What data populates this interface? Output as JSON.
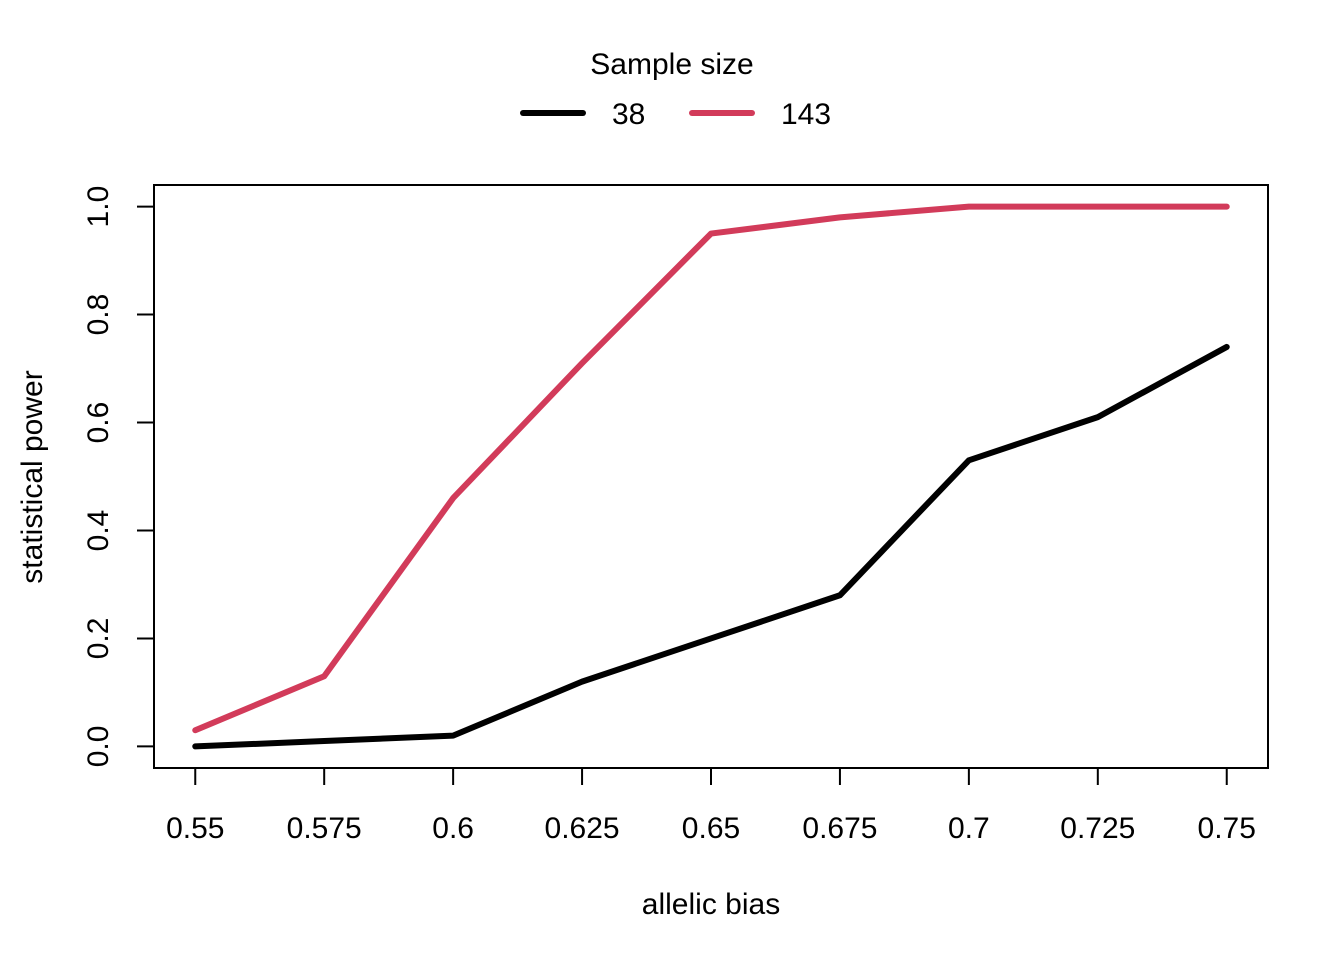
{
  "chart_data": {
    "type": "line",
    "title": "",
    "xlabel": "allelic bias",
    "ylabel": "statistical power",
    "x": [
      0.55,
      0.575,
      0.6,
      0.625,
      0.65,
      0.675,
      0.7,
      0.725,
      0.75
    ],
    "x_tick_labels": [
      "0.55",
      "0.575",
      "0.6",
      "0.625",
      "0.65",
      "0.675",
      "0.7",
      "0.725",
      "0.75"
    ],
    "y_ticks": [
      0.0,
      0.2,
      0.4,
      0.6,
      0.8,
      1.0
    ],
    "y_tick_labels": [
      "0.0",
      "0.2",
      "0.4",
      "0.6",
      "0.8",
      "1.0"
    ],
    "xlim": [
      0.542,
      0.758
    ],
    "ylim": [
      -0.04,
      1.04
    ],
    "grid": false,
    "legend": {
      "title": "Sample size",
      "placement": "top-center",
      "orientation": "horizontal"
    },
    "series": [
      {
        "name": "38",
        "color": "#000000",
        "values": [
          0.0,
          0.01,
          0.02,
          0.12,
          0.2,
          0.28,
          0.53,
          0.61,
          0.74
        ]
      },
      {
        "name": "143",
        "color": "#d23b5a",
        "values": [
          0.03,
          0.13,
          0.46,
          0.71,
          0.95,
          0.98,
          1.0,
          1.0,
          1.0
        ]
      }
    ]
  }
}
